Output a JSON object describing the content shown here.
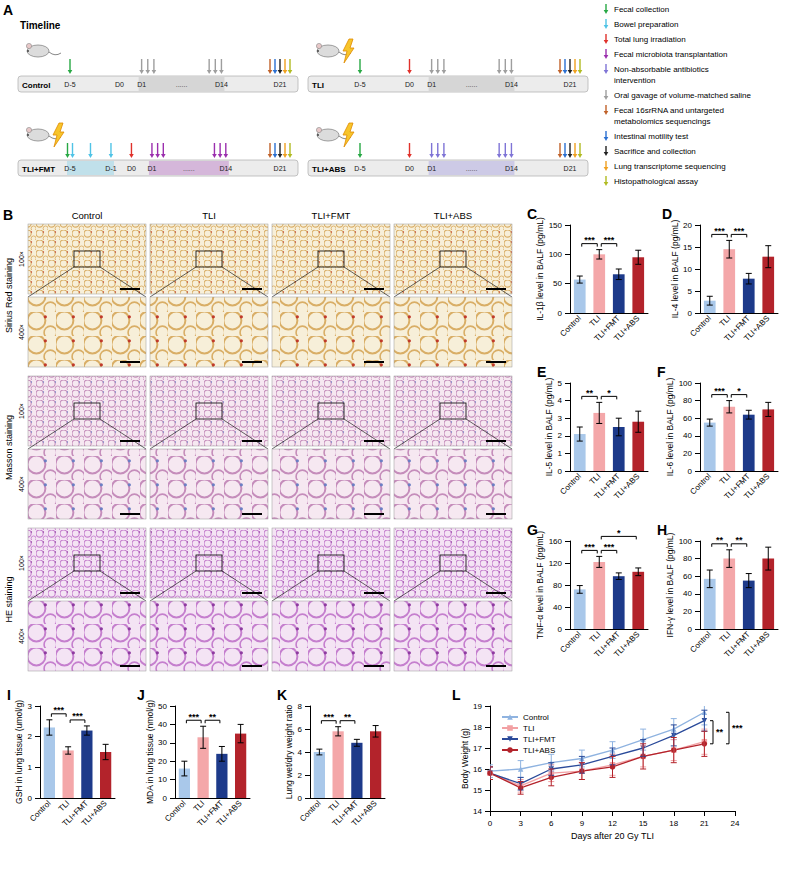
{
  "timeline": {
    "panel": "A",
    "title": "Timeline",
    "gap_text": "......",
    "rows": [
      {
        "label": "Control",
        "irradiated": false,
        "days": [
          {
            "label": "D-5",
            "day": -5
          },
          {
            "label": "D0",
            "day": 0
          },
          {
            "label": "D1",
            "day": 1
          },
          {
            "label": "D14",
            "day": 14
          },
          {
            "label": "D21",
            "day": 21
          }
        ],
        "events": [
          {
            "day": -5,
            "items": [
              "Fecal collection"
            ]
          },
          {
            "day": 1,
            "items": [
              "Oral gavage of volume-matched saline"
            ]
          },
          {
            "day": 2,
            "items": [
              "Oral gavage of volume-matched saline"
            ]
          },
          {
            "day": 3,
            "items": [
              "Oral gavage of volume-matched saline"
            ]
          },
          {
            "day": 12,
            "items": [
              "Oral gavage of volume-matched saline"
            ]
          },
          {
            "day": 13,
            "items": [
              "Oral gavage of volume-matched saline"
            ]
          },
          {
            "day": 14,
            "items": [
              "Oral gavage of volume-matched saline"
            ]
          },
          {
            "day": 21,
            "items": [
              "Fecal 16srRNA and untargeted metabolomics sequencings",
              "Intestinal motility test",
              "Sacrifice and collection",
              "Lung transcriptome sequencing",
              "Histopathological assay"
            ]
          }
        ]
      },
      {
        "label": "TLI",
        "irradiated": true,
        "days": [
          {
            "label": "D-5",
            "day": -5
          },
          {
            "label": "D0",
            "day": 0
          },
          {
            "label": "D1",
            "day": 1
          },
          {
            "label": "D14",
            "day": 14
          },
          {
            "label": "D21",
            "day": 21
          }
        ],
        "events": [
          {
            "day": -5,
            "items": [
              "Fecal collection"
            ]
          },
          {
            "day": 0,
            "items": [
              "Total lung irradiation"
            ]
          },
          {
            "day": 1,
            "items": [
              "Oral gavage of volume-matched saline"
            ]
          },
          {
            "day": 2,
            "items": [
              "Oral gavage of volume-matched saline"
            ]
          },
          {
            "day": 3,
            "items": [
              "Oral gavage of volume-matched saline"
            ]
          },
          {
            "day": 12,
            "items": [
              "Oral gavage of volume-matched saline"
            ]
          },
          {
            "day": 13,
            "items": [
              "Oral gavage of volume-matched saline"
            ]
          },
          {
            "day": 14,
            "items": [
              "Oral gavage of volume-matched saline"
            ]
          },
          {
            "day": 21,
            "items": [
              "Fecal 16srRNA and untargeted metabolomics sequencings",
              "Intestinal motility test",
              "Sacrifice and collection",
              "Lung transcriptome sequencing",
              "Histopathological assay"
            ]
          }
        ]
      },
      {
        "label": "TLI+FMT",
        "irradiated": true,
        "days": [
          {
            "label": "D-5",
            "day": -5
          },
          {
            "label": "D-1",
            "day": -1
          },
          {
            "label": "D0",
            "day": 0
          },
          {
            "label": "D1",
            "day": 1
          },
          {
            "label": "D14",
            "day": 14
          },
          {
            "label": "D21",
            "day": 21
          }
        ],
        "events": [
          {
            "day": -5,
            "items": [
              "Fecal collection",
              "Bowel preparation"
            ]
          },
          {
            "day": -3,
            "items": [
              "Bowel preparation"
            ]
          },
          {
            "day": -1,
            "items": [
              "Bowel preparation"
            ]
          },
          {
            "day": 0,
            "items": [
              "Total lung irradiation"
            ]
          },
          {
            "day": 1,
            "items": [
              "Fecal microbiota transplantation"
            ]
          },
          {
            "day": 2,
            "items": [
              "Fecal microbiota transplantation"
            ]
          },
          {
            "day": 3,
            "items": [
              "Fecal microbiota transplantation"
            ]
          },
          {
            "day": 12,
            "items": [
              "Fecal microbiota transplantation"
            ]
          },
          {
            "day": 13,
            "items": [
              "Fecal microbiota transplantation"
            ]
          },
          {
            "day": 14,
            "items": [
              "Fecal microbiota transplantation"
            ]
          },
          {
            "day": 21,
            "items": [
              "Fecal 16srRNA and untargeted metabolomics sequencings",
              "Intestinal motility test",
              "Sacrifice and collection",
              "Lung transcriptome sequencing",
              "Histopathological assay"
            ]
          }
        ]
      },
      {
        "label": "TLI+ABS",
        "irradiated": true,
        "days": [
          {
            "label": "D-5",
            "day": -5
          },
          {
            "label": "D0",
            "day": 0
          },
          {
            "label": "D1",
            "day": 1
          },
          {
            "label": "D14",
            "day": 14
          },
          {
            "label": "D21",
            "day": 21
          }
        ],
        "events": [
          {
            "day": -5,
            "items": [
              "Fecal collection"
            ]
          },
          {
            "day": 0,
            "items": [
              "Total lung irradiation"
            ]
          },
          {
            "day": 1,
            "items": [
              "Non-absorbable antibiotics intervention"
            ]
          },
          {
            "day": 2,
            "items": [
              "Non-absorbable antibiotics intervention"
            ]
          },
          {
            "day": 3,
            "items": [
              "Non-absorbable antibiotics intervention"
            ]
          },
          {
            "day": 12,
            "items": [
              "Non-absorbable antibiotics intervention"
            ]
          },
          {
            "day": 13,
            "items": [
              "Non-absorbable antibiotics intervention"
            ]
          },
          {
            "day": 14,
            "items": [
              "Non-absorbable antibiotics intervention"
            ]
          },
          {
            "day": 21,
            "items": [
              "Fecal 16srRNA and untargeted metabolomics sequencings",
              "Intestinal motility test",
              "Sacrifice and collection",
              "Lung transcriptome sequencing",
              "Histopathological assay"
            ]
          }
        ]
      }
    ],
    "legend": [
      {
        "label": "Fecal collection",
        "color": "#27a844"
      },
      {
        "label": "Bowel preparation",
        "color": "#4fc3e6"
      },
      {
        "label": "Total lung irradiation",
        "color": "#e0312b"
      },
      {
        "label": "Fecal microbiota transplantation",
        "color": "#9b2fae"
      },
      {
        "label": "Non-absorbable antibiotics intervention",
        "color": "#7f74d6"
      },
      {
        "label": "Oral gavage of volume-matched saline",
        "color": "#9e9e9e"
      },
      {
        "label": "Fecal 16srRNA and untargeted metabolomics sequencings",
        "color": "#c0622a"
      },
      {
        "label": "Intestinal motility test",
        "color": "#2a6fd1"
      },
      {
        "label": "Sacrifice and collection",
        "color": "#222222"
      },
      {
        "label": "Lung transcriptome sequencing",
        "color": "#f0a020"
      },
      {
        "label": "Histopathological assay",
        "color": "#b0bb22"
      }
    ]
  },
  "histology": {
    "panel": "B",
    "groups": [
      "Control",
      "TLI",
      "TLI+FMT",
      "TLI+ABS"
    ],
    "stains": [
      "Sirius Red staining",
      "Masson staining",
      "HE staining"
    ],
    "magnifications": [
      "100×",
      "400×"
    ]
  },
  "chart_data": [
    {
      "panel": "C",
      "type": "bar",
      "categories": [
        "Control",
        "TLI",
        "TLI+FMT",
        "TLI+ABS"
      ],
      "values": [
        57,
        100,
        66,
        95
      ],
      "errors": [
        6,
        8,
        9,
        12
      ],
      "colors": [
        "#a9c8ea",
        "#f4a7a9",
        "#1d3a8a",
        "#b3232b"
      ],
      "y_label": "IL-1β level in BALF (pg/mL)",
      "ylim": [
        0,
        150
      ],
      "yticks": [
        0,
        50,
        100,
        150
      ],
      "grid": false,
      "significance": [
        {
          "from": "Control",
          "to": "TLI",
          "label": "***"
        },
        {
          "from": "TLI",
          "to": "TLI+FMT",
          "label": "***"
        }
      ]
    },
    {
      "panel": "D",
      "type": "bar",
      "categories": [
        "Control",
        "TLI",
        "TLI+FMT",
        "TLI+ABS"
      ],
      "values": [
        2.8,
        14.5,
        7.8,
        12.8
      ],
      "errors": [
        1,
        2,
        1.2,
        2.5
      ],
      "colors": [
        "#a9c8ea",
        "#f4a7a9",
        "#1d3a8a",
        "#b3232b"
      ],
      "y_label": "IL-4 level in BALF (pg/mL)",
      "ylim": [
        0,
        20
      ],
      "yticks": [
        0,
        5,
        10,
        15,
        20
      ],
      "grid": false,
      "significance": [
        {
          "from": "Control",
          "to": "TLI",
          "label": "***"
        },
        {
          "from": "TLI",
          "to": "TLI+FMT",
          "label": "***"
        }
      ]
    },
    {
      "panel": "E",
      "type": "bar",
      "categories": [
        "Control",
        "TLI",
        "TLI+FMT",
        "TLI+ABS"
      ],
      "values": [
        2.1,
        3.3,
        2.5,
        2.8
      ],
      "errors": [
        0.4,
        0.6,
        0.5,
        0.6
      ],
      "colors": [
        "#a9c8ea",
        "#f4a7a9",
        "#1d3a8a",
        "#b3232b"
      ],
      "y_label": "IL-5 level in BALF (pg/mL)",
      "ylim": [
        0,
        5
      ],
      "yticks": [
        0,
        1,
        2,
        3,
        4,
        5
      ],
      "grid": false,
      "significance": [
        {
          "from": "Control",
          "to": "TLI",
          "label": "**"
        },
        {
          "from": "TLI",
          "to": "TLI+FMT",
          "label": "*"
        }
      ]
    },
    {
      "panel": "F",
      "type": "bar",
      "categories": [
        "Control",
        "TLI",
        "TLI+FMT",
        "TLI+ABS"
      ],
      "values": [
        55,
        73,
        64,
        70
      ],
      "errors": [
        4,
        7,
        5,
        8
      ],
      "colors": [
        "#a9c8ea",
        "#f4a7a9",
        "#1d3a8a",
        "#b3232b"
      ],
      "y_label": "IL-6 level in BALF (pg/mL)",
      "ylim": [
        0,
        100
      ],
      "yticks": [
        0,
        20,
        40,
        60,
        80,
        100
      ],
      "grid": false,
      "significance": [
        {
          "from": "Control",
          "to": "TLI",
          "label": "***"
        },
        {
          "from": "TLI",
          "to": "TLI+FMT",
          "label": "*"
        }
      ]
    },
    {
      "panel": "G",
      "type": "bar",
      "categories": [
        "Control",
        "TLI",
        "TLI+FMT",
        "TLI+ABS"
      ],
      "values": [
        72,
        122,
        96,
        104
      ],
      "errors": [
        7,
        10,
        6,
        7
      ],
      "colors": [
        "#a9c8ea",
        "#f4a7a9",
        "#1d3a8a",
        "#b3232b"
      ],
      "y_label": "TNF-α level in BALF (pg/mL)",
      "ylim": [
        0,
        160
      ],
      "yticks": [
        0,
        40,
        80,
        120,
        160
      ],
      "grid": false,
      "significance": [
        {
          "from": "Control",
          "to": "TLI",
          "label": "***"
        },
        {
          "from": "TLI",
          "to": "TLI+FMT",
          "label": "***"
        },
        {
          "from": "TLI",
          "to": "TLI+ABS",
          "label": "*"
        }
      ]
    },
    {
      "panel": "H",
      "type": "bar",
      "categories": [
        "Control",
        "TLI",
        "TLI+FMT",
        "TLI+ABS"
      ],
      "values": [
        57,
        80,
        55,
        80
      ],
      "errors": [
        10,
        10,
        8,
        13
      ],
      "colors": [
        "#a9c8ea",
        "#f4a7a9",
        "#1d3a8a",
        "#b3232b"
      ],
      "y_label": "IFN-γ level in BALF (pg/mL)",
      "ylim": [
        0,
        100
      ],
      "yticks": [
        0,
        20,
        40,
        60,
        80,
        100
      ],
      "grid": false,
      "significance": [
        {
          "from": "Control",
          "to": "TLI",
          "label": "**"
        },
        {
          "from": "TLI",
          "to": "TLI+FMT",
          "label": "**"
        }
      ]
    },
    {
      "panel": "I",
      "type": "bar",
      "categories": [
        "Control",
        "TLI",
        "TLI+FMT",
        "TLI+ABS"
      ],
      "values": [
        2.3,
        1.55,
        2.2,
        1.5
      ],
      "errors": [
        0.25,
        0.12,
        0.15,
        0.25
      ],
      "colors": [
        "#a9c8ea",
        "#f4a7a9",
        "#1d3a8a",
        "#b3232b"
      ],
      "y_label": "GSH in lung tissue (umol/g)",
      "ylim": [
        0,
        3
      ],
      "yticks": [
        0,
        1,
        2,
        3
      ],
      "grid": false,
      "significance": [
        {
          "from": "Control",
          "to": "TLI",
          "label": "***"
        },
        {
          "from": "TLI",
          "to": "TLI+FMT",
          "label": "***"
        }
      ]
    },
    {
      "panel": "J",
      "type": "bar",
      "categories": [
        "Control",
        "TLI",
        "TLI+FMT",
        "TLI+ABS"
      ],
      "values": [
        16,
        33,
        24,
        35
      ],
      "errors": [
        4,
        6,
        4,
        5
      ],
      "colors": [
        "#a9c8ea",
        "#f4a7a9",
        "#1d3a8a",
        "#b3232b"
      ],
      "y_label": "MDA in lung tissue (nmol/g)",
      "ylim": [
        0,
        50
      ],
      "yticks": [
        0,
        10,
        20,
        30,
        40,
        50
      ],
      "grid": false,
      "significance": [
        {
          "from": "Control",
          "to": "TLI",
          "label": "***"
        },
        {
          "from": "TLI",
          "to": "TLI+FMT",
          "label": "**"
        }
      ]
    },
    {
      "panel": "K",
      "type": "bar",
      "categories": [
        "Control",
        "TLI",
        "TLI+FMT",
        "TLI+ABS"
      ],
      "values": [
        4.0,
        5.8,
        4.8,
        5.8
      ],
      "errors": [
        0.25,
        0.4,
        0.3,
        0.5
      ],
      "colors": [
        "#a9c8ea",
        "#f4a7a9",
        "#1d3a8a",
        "#b3232b"
      ],
      "y_label": "Lung wet/dry weight ratio",
      "ylim": [
        0,
        8
      ],
      "yticks": [
        0,
        2,
        4,
        6,
        8
      ],
      "grid": false,
      "significance": [
        {
          "from": "Control",
          "to": "TLI",
          "label": "***"
        },
        {
          "from": "TLI",
          "to": "TLI+FMT",
          "label": "**"
        }
      ]
    },
    {
      "panel": "L",
      "type": "line",
      "x": [
        0,
        3,
        6,
        9,
        12,
        15,
        18,
        21
      ],
      "series": [
        {
          "name": "Control",
          "color": "#8fb3e0",
          "marker": "triangle",
          "values": [
            15.9,
            16.0,
            16.3,
            16.5,
            16.9,
            17.4,
            17.9,
            18.7
          ],
          "errors": [
            0.3,
            0.4,
            0.4,
            0.4,
            0.4,
            0.5,
            0.5,
            0.6
          ]
        },
        {
          "name": "TLI",
          "color": "#f2a0a3",
          "marker": "square",
          "values": [
            15.8,
            15.2,
            15.8,
            15.9,
            16.2,
            16.6,
            16.9,
            17.3
          ],
          "errors": [
            0.3,
            0.3,
            0.4,
            0.4,
            0.5,
            0.5,
            0.5,
            0.6
          ]
        },
        {
          "name": "TLI+FMT",
          "color": "#2a4a9a",
          "marker": "triangle-down",
          "values": [
            15.8,
            15.3,
            16.0,
            16.2,
            16.6,
            17.0,
            17.6,
            18.3
          ],
          "errors": [
            0.3,
            0.3,
            0.3,
            0.4,
            0.4,
            0.4,
            0.5,
            0.5
          ]
        },
        {
          "name": "TLI+ABS",
          "color": "#b3232b",
          "marker": "circle",
          "values": [
            15.8,
            15.1,
            15.6,
            15.9,
            16.1,
            16.6,
            16.9,
            17.2
          ],
          "errors": [
            0.3,
            0.3,
            0.4,
            0.4,
            0.5,
            0.6,
            0.6,
            0.6
          ]
        }
      ],
      "x_label": "Days after 20 Gy TLI",
      "y_label": "Body Weight (g)",
      "xlim": [
        0,
        24
      ],
      "xticks": [
        0,
        3,
        6,
        9,
        12,
        15,
        18,
        21,
        24
      ],
      "ylim": [
        14,
        19
      ],
      "yticks": [
        14,
        15,
        16,
        17,
        18,
        19
      ],
      "grid": false,
      "legend": "top-left",
      "significance": [
        {
          "from": "TLI+FMT",
          "to": "TLI+ABS",
          "label": "**"
        },
        {
          "from": "Control",
          "to": "TLI+ABS",
          "label": "***"
        }
      ]
    }
  ]
}
